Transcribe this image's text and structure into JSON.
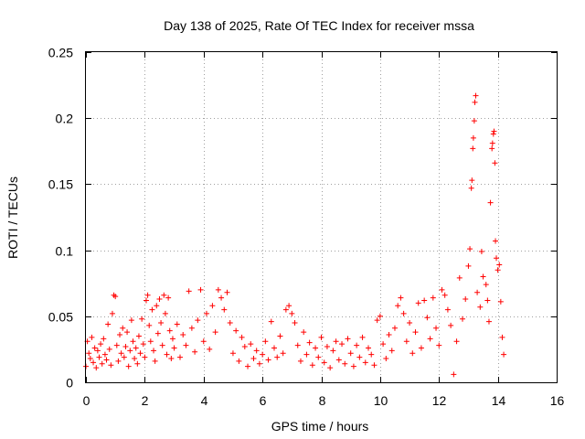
{
  "chart_data": {
    "type": "scatter",
    "title": "Day 138 of 2025, Rate Of TEC Index for receiver mssa",
    "xlabel": "GPS time / hours",
    "ylabel": "ROTI / TECUs",
    "xlim": [
      0,
      16
    ],
    "ylim": [
      0,
      0.25
    ],
    "x_ticks": [
      0,
      2,
      4,
      6,
      8,
      10,
      12,
      14,
      16
    ],
    "x_tick_labels": [
      "0",
      "2",
      "4",
      "6",
      "8",
      "10",
      "12",
      "14",
      "16"
    ],
    "y_ticks": [
      0,
      0.05,
      0.1,
      0.15,
      0.2,
      0.25
    ],
    "y_tick_labels": [
      "0",
      "0.05",
      "0.1",
      "0.15",
      "0.2",
      "0.25"
    ],
    "grid": true,
    "marker": "+",
    "color": "#ff0000",
    "series": [
      {
        "name": "ROTI",
        "points": [
          [
            0.0,
            0.012
          ],
          [
            0.05,
            0.031
          ],
          [
            0.1,
            0.022
          ],
          [
            0.15,
            0.018
          ],
          [
            0.2,
            0.034
          ],
          [
            0.25,
            0.015
          ],
          [
            0.3,
            0.026
          ],
          [
            0.35,
            0.011
          ],
          [
            0.4,
            0.024
          ],
          [
            0.45,
            0.019
          ],
          [
            0.5,
            0.029
          ],
          [
            0.55,
            0.014
          ],
          [
            0.6,
            0.033
          ],
          [
            0.65,
            0.021
          ],
          [
            0.7,
            0.017
          ],
          [
            0.75,
            0.044
          ],
          [
            0.8,
            0.025
          ],
          [
            0.85,
            0.013
          ],
          [
            0.9,
            0.052
          ],
          [
            0.95,
            0.066
          ],
          [
            1.0,
            0.065
          ],
          [
            1.05,
            0.028
          ],
          [
            1.1,
            0.016
          ],
          [
            1.15,
            0.036
          ],
          [
            1.2,
            0.022
          ],
          [
            1.25,
            0.041
          ],
          [
            1.3,
            0.019
          ],
          [
            1.35,
            0.027
          ],
          [
            1.4,
            0.038
          ],
          [
            1.45,
            0.012
          ],
          [
            1.5,
            0.024
          ],
          [
            1.55,
            0.047
          ],
          [
            1.6,
            0.031
          ],
          [
            1.65,
            0.018
          ],
          [
            1.7,
            0.026
          ],
          [
            1.75,
            0.014
          ],
          [
            1.8,
            0.035
          ],
          [
            1.85,
            0.022
          ],
          [
            1.9,
            0.048
          ],
          [
            1.95,
            0.029
          ],
          [
            2.0,
            0.019
          ],
          [
            2.05,
            0.062
          ],
          [
            2.1,
            0.066
          ],
          [
            2.15,
            0.043
          ],
          [
            2.2,
            0.031
          ],
          [
            2.25,
            0.055
          ],
          [
            2.3,
            0.024
          ],
          [
            2.35,
            0.016
          ],
          [
            2.4,
            0.058
          ],
          [
            2.45,
            0.037
          ],
          [
            2.5,
            0.063
          ],
          [
            2.55,
            0.045
          ],
          [
            2.6,
            0.028
          ],
          [
            2.65,
            0.066
          ],
          [
            2.7,
            0.052
          ],
          [
            2.75,
            0.021
          ],
          [
            2.8,
            0.064
          ],
          [
            2.85,
            0.039
          ],
          [
            2.9,
            0.018
          ],
          [
            2.95,
            0.033
          ],
          [
            3.0,
            0.026
          ],
          [
            3.1,
            0.044
          ],
          [
            3.2,
            0.019
          ],
          [
            3.3,
            0.036
          ],
          [
            3.4,
            0.028
          ],
          [
            3.5,
            0.069
          ],
          [
            3.6,
            0.041
          ],
          [
            3.7,
            0.023
          ],
          [
            3.8,
            0.047
          ],
          [
            3.9,
            0.07
          ],
          [
            4.0,
            0.031
          ],
          [
            4.1,
            0.052
          ],
          [
            4.2,
            0.025
          ],
          [
            4.3,
            0.058
          ],
          [
            4.4,
            0.038
          ],
          [
            4.5,
            0.07
          ],
          [
            4.6,
            0.064
          ],
          [
            4.7,
            0.055
          ],
          [
            4.8,
            0.068
          ],
          [
            4.9,
            0.045
          ],
          [
            5.0,
            0.022
          ],
          [
            5.1,
            0.039
          ],
          [
            5.2,
            0.016
          ],
          [
            5.3,
            0.034
          ],
          [
            5.4,
            0.027
          ],
          [
            5.5,
            0.012
          ],
          [
            5.6,
            0.029
          ],
          [
            5.7,
            0.018
          ],
          [
            5.8,
            0.024
          ],
          [
            5.9,
            0.014
          ],
          [
            6.0,
            0.021
          ],
          [
            6.1,
            0.031
          ],
          [
            6.2,
            0.017
          ],
          [
            6.3,
            0.046
          ],
          [
            6.4,
            0.026
          ],
          [
            6.5,
            0.019
          ],
          [
            6.6,
            0.035
          ],
          [
            6.7,
            0.022
          ],
          [
            6.8,
            0.055
          ],
          [
            6.9,
            0.058
          ],
          [
            7.0,
            0.052
          ],
          [
            7.1,
            0.045
          ],
          [
            7.2,
            0.028
          ],
          [
            7.3,
            0.016
          ],
          [
            7.4,
            0.038
          ],
          [
            7.5,
            0.021
          ],
          [
            7.6,
            0.03
          ],
          [
            7.7,
            0.013
          ],
          [
            7.8,
            0.026
          ],
          [
            7.9,
            0.019
          ],
          [
            8.0,
            0.034
          ],
          [
            8.1,
            0.015
          ],
          [
            8.2,
            0.027
          ],
          [
            8.3,
            0.011
          ],
          [
            8.4,
            0.024
          ],
          [
            8.5,
            0.031
          ],
          [
            8.6,
            0.017
          ],
          [
            8.7,
            0.029
          ],
          [
            8.8,
            0.014
          ],
          [
            8.9,
            0.033
          ],
          [
            9.0,
            0.022
          ],
          [
            9.1,
            0.012
          ],
          [
            9.2,
            0.028
          ],
          [
            9.3,
            0.019
          ],
          [
            9.4,
            0.034
          ],
          [
            9.5,
            0.015
          ],
          [
            9.6,
            0.026
          ],
          [
            9.7,
            0.021
          ],
          [
            9.8,
            0.013
          ],
          [
            9.9,
            0.047
          ],
          [
            10.0,
            0.05
          ],
          [
            10.1,
            0.029
          ],
          [
            10.2,
            0.018
          ],
          [
            10.3,
            0.036
          ],
          [
            10.4,
            0.024
          ],
          [
            10.5,
            0.041
          ],
          [
            10.6,
            0.058
          ],
          [
            10.7,
            0.064
          ],
          [
            10.8,
            0.052
          ],
          [
            10.9,
            0.031
          ],
          [
            11.0,
            0.045
          ],
          [
            11.1,
            0.022
          ],
          [
            11.2,
            0.038
          ],
          [
            11.3,
            0.06
          ],
          [
            11.4,
            0.026
          ],
          [
            11.5,
            0.062
          ],
          [
            11.6,
            0.049
          ],
          [
            11.7,
            0.033
          ],
          [
            11.8,
            0.064
          ],
          [
            11.9,
            0.041
          ],
          [
            12.0,
            0.028
          ],
          [
            12.1,
            0.07
          ],
          [
            12.2,
            0.066
          ],
          [
            12.3,
            0.055
          ],
          [
            12.4,
            0.043
          ],
          [
            12.5,
            0.006
          ],
          [
            12.6,
            0.031
          ],
          [
            12.7,
            0.079
          ],
          [
            12.8,
            0.048
          ],
          [
            12.9,
            0.063
          ],
          [
            13.0,
            0.088
          ],
          [
            13.05,
            0.101
          ],
          [
            13.1,
            0.147
          ],
          [
            13.12,
            0.153
          ],
          [
            13.15,
            0.177
          ],
          [
            13.17,
            0.185
          ],
          [
            13.2,
            0.198
          ],
          [
            13.22,
            0.212
          ],
          [
            13.25,
            0.217
          ],
          [
            13.3,
            0.068
          ],
          [
            13.4,
            0.057
          ],
          [
            13.45,
            0.099
          ],
          [
            13.5,
            0.08
          ],
          [
            13.6,
            0.074
          ],
          [
            13.65,
            0.062
          ],
          [
            13.7,
            0.046
          ],
          [
            13.75,
            0.136
          ],
          [
            13.8,
            0.177
          ],
          [
            13.82,
            0.181
          ],
          [
            13.85,
            0.188
          ],
          [
            13.87,
            0.19
          ],
          [
            13.9,
            0.166
          ],
          [
            13.92,
            0.107
          ],
          [
            13.95,
            0.094
          ],
          [
            14.0,
            0.085
          ],
          [
            14.05,
            0.089
          ],
          [
            14.1,
            0.061
          ],
          [
            14.15,
            0.034
          ],
          [
            14.2,
            0.021
          ]
        ]
      }
    ]
  }
}
